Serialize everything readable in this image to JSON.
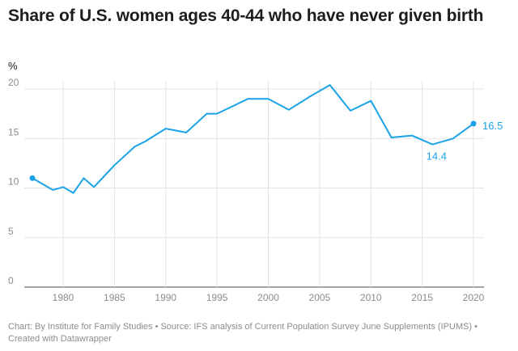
{
  "chart_data": {
    "type": "line",
    "title": "Share of U.S. women ages 40-44 who have never given birth",
    "ylabel": "%",
    "xlabel": "",
    "x": [
      1977,
      1979,
      1980,
      1981,
      1982,
      1983,
      1985,
      1987,
      1988,
      1990,
      1992,
      1994,
      1995,
      1998,
      2000,
      2002,
      2004,
      2006,
      2008,
      2010,
      2012,
      2014,
      2016,
      2018,
      2020
    ],
    "series": [
      {
        "color": "#1aa3e8",
        "values": [
          11.0,
          9.8,
          10.1,
          9.5,
          11.0,
          10.1,
          12.3,
          14.2,
          14.7,
          16.0,
          15.6,
          17.5,
          17.5,
          19.0,
          19.0,
          17.9,
          19.2,
          20.4,
          17.8,
          18.8,
          15.1,
          15.3,
          14.4,
          15.0,
          16.5
        ]
      }
    ],
    "xlim": [
      1977,
      2020
    ],
    "ylim": [
      0,
      20
    ],
    "xticks": [
      "1980",
      "1985",
      "1990",
      "1995",
      "2000",
      "2005",
      "2010",
      "2015",
      "2020"
    ],
    "yticks": [
      "0",
      "5",
      "10",
      "15",
      "20"
    ],
    "annotations": [
      {
        "x": 2016,
        "y": 14.4,
        "text": "14.4"
      },
      {
        "x": 2020,
        "y": 16.5,
        "text": "16.5"
      }
    ],
    "grid": true
  },
  "footer": {
    "text": "Chart: By Institute for Family Studies • Source: IFS analysis of Current Population Survey June Supplements (IPUMS) • Created with Datawrapper"
  }
}
